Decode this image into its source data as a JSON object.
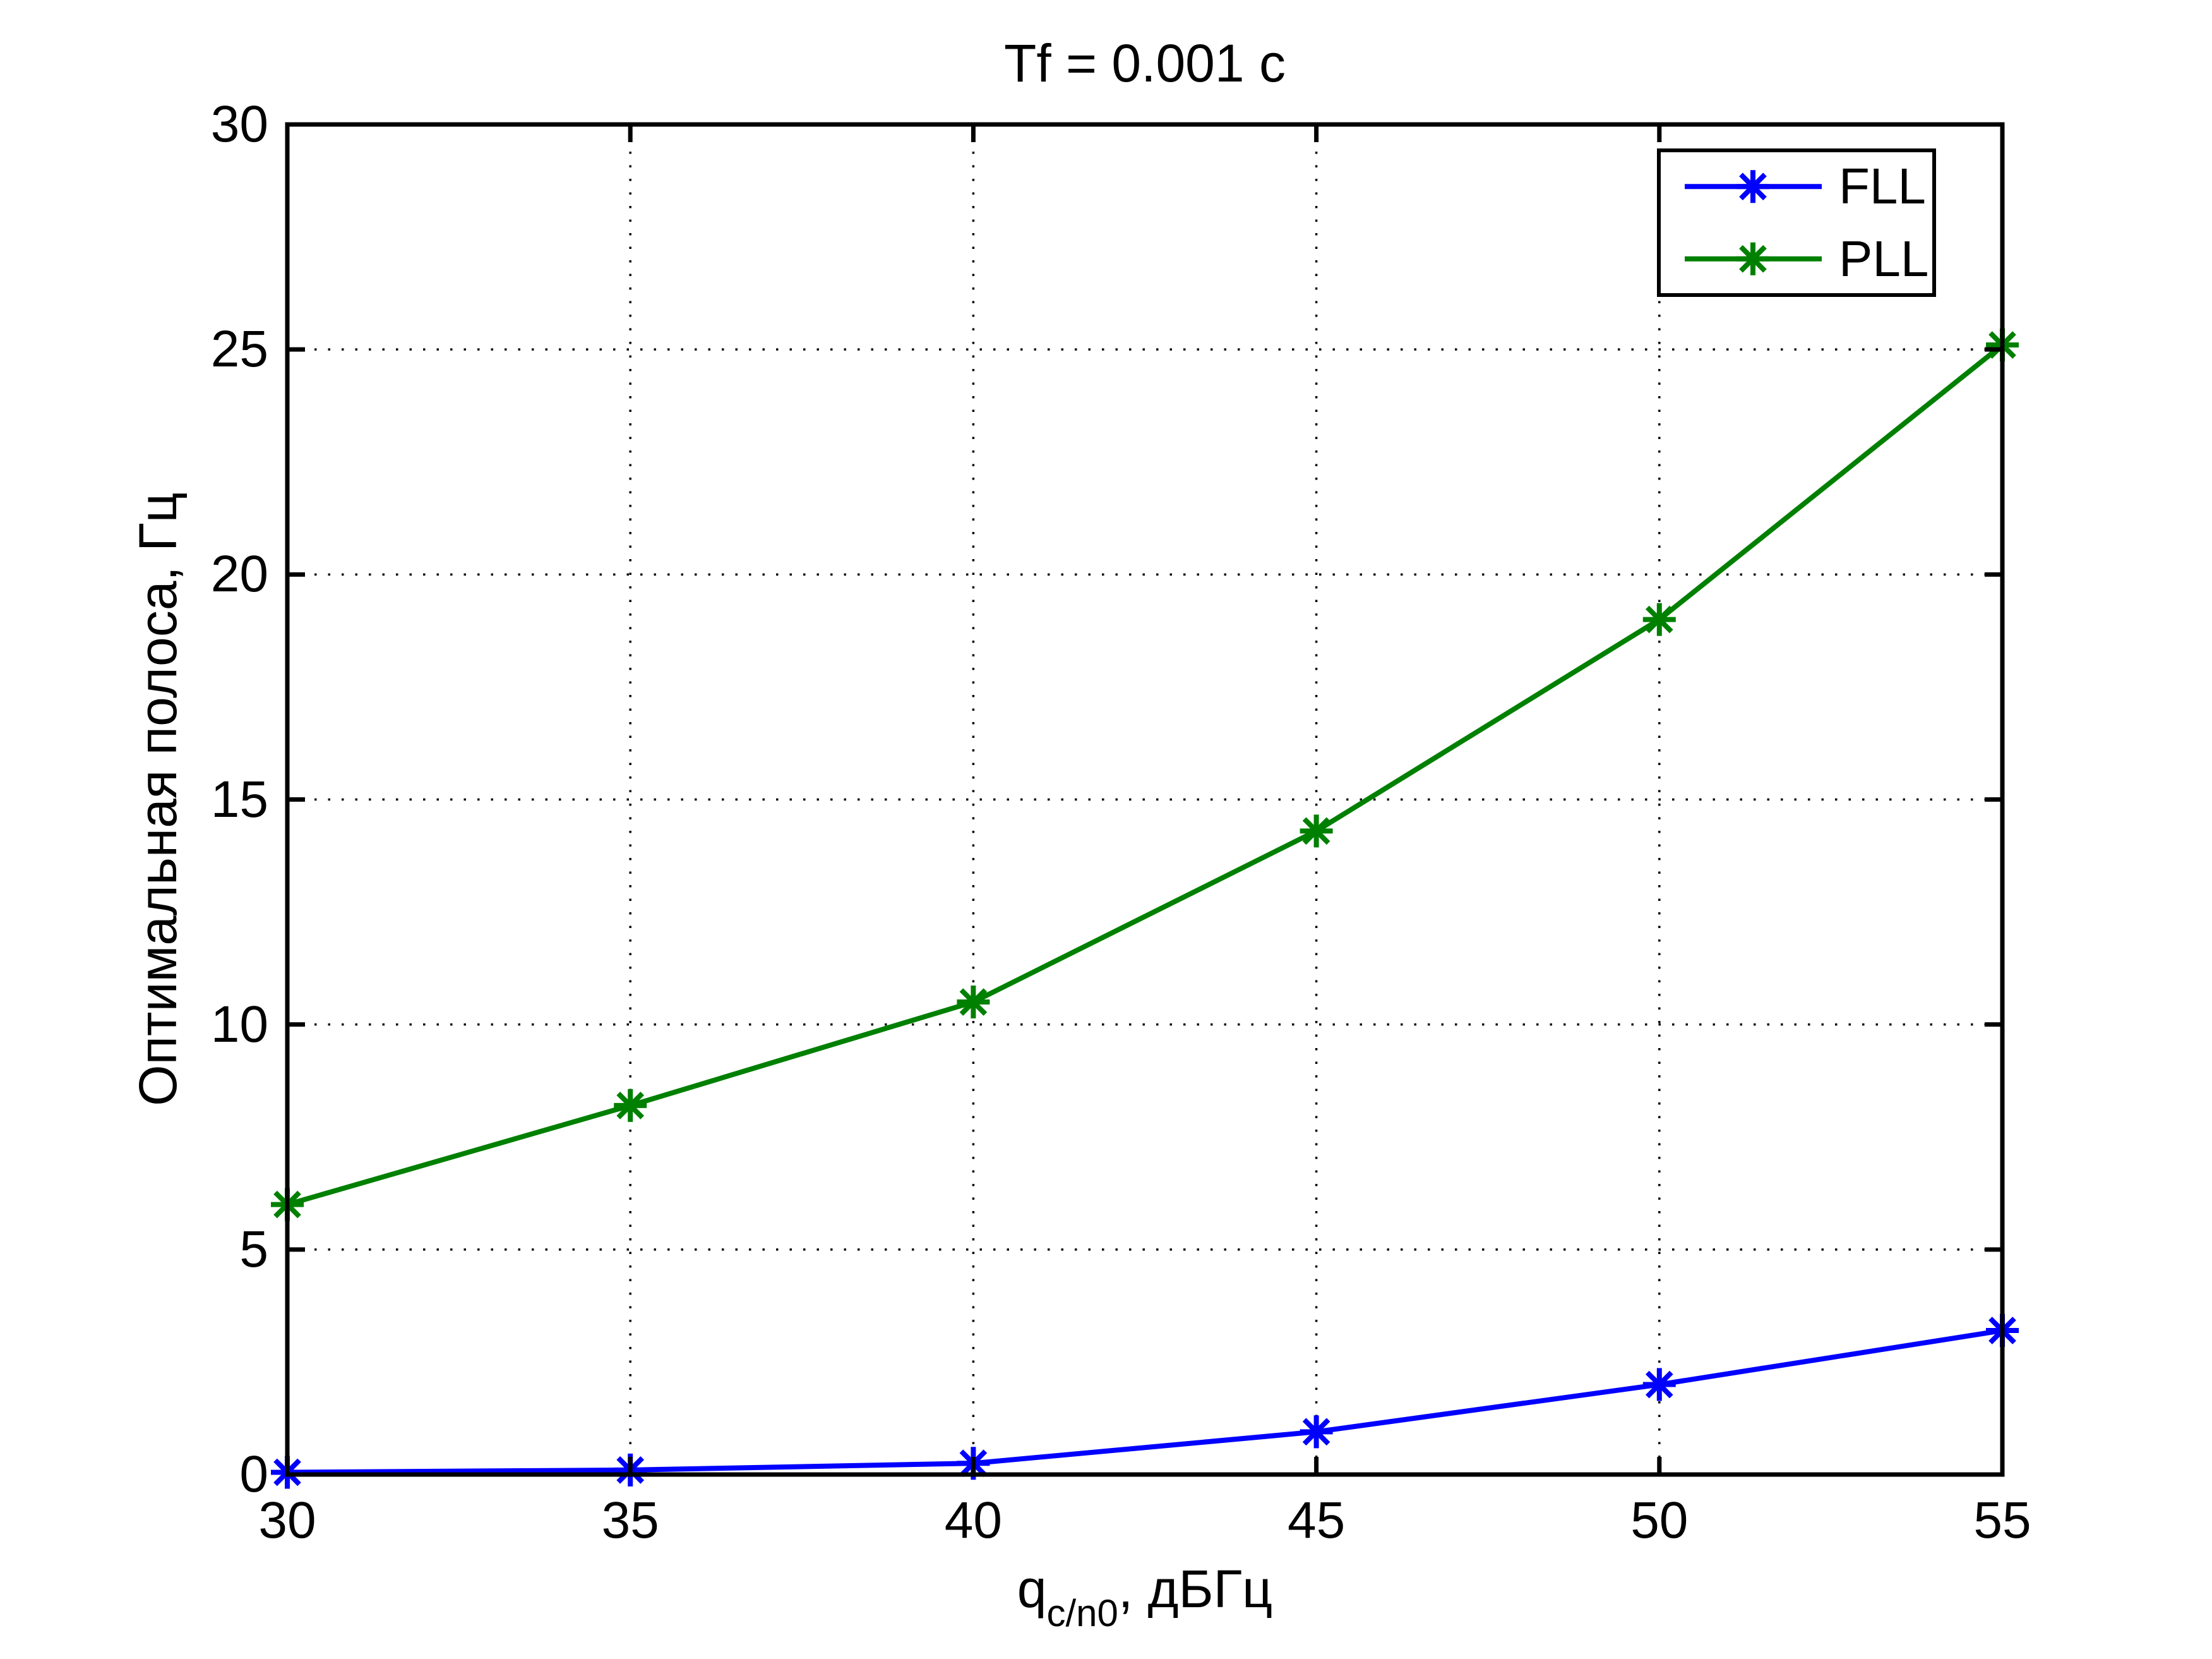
{
  "chart_data": {
    "type": "line",
    "title": "Tf = 0.001 c",
    "xlabel": "q_c/n0, дБГц",
    "xlabel_parts": {
      "base": "q",
      "sub": "c/n0",
      "rest": ", дБГц"
    },
    "ylabel": "Оптимальная полоса, Гц",
    "x": [
      30,
      35,
      40,
      45,
      50,
      55
    ],
    "series": [
      {
        "name": "FLL",
        "color": "#0000ff",
        "marker": "asterisk",
        "values": [
          0.05,
          0.1,
          0.25,
          0.95,
          2.0,
          3.2
        ]
      },
      {
        "name": "PLL",
        "color": "#008000",
        "marker": "asterisk",
        "values": [
          6.0,
          8.2,
          10.5,
          14.3,
          19.0,
          25.1
        ]
      }
    ],
    "xlim": [
      30,
      55
    ],
    "ylim": [
      0,
      30
    ],
    "xticks": [
      30,
      35,
      40,
      45,
      50,
      55
    ],
    "yticks": [
      0,
      5,
      10,
      15,
      20,
      25,
      30
    ],
    "grid": true,
    "grid_style": "dotted",
    "legend": {
      "position": "top-right",
      "entries": [
        "FLL",
        "PLL"
      ]
    },
    "axis_color": "#000000",
    "background_color": "#ffffff"
  }
}
